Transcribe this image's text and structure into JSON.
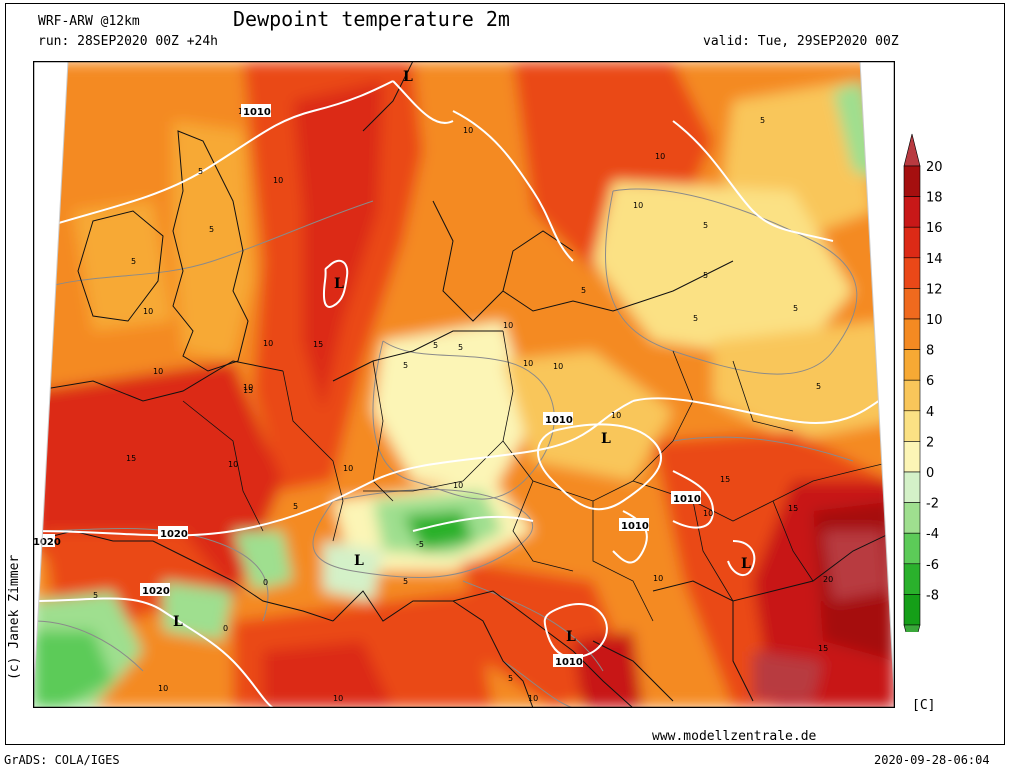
{
  "header": {
    "model": "WRF-ARW @12km",
    "run": "run: 28SEP2020 00Z +24h",
    "title": "Dewpoint temperature 2m",
    "valid": "valid: Tue, 29SEP2020 00Z"
  },
  "footer": {
    "website": "www.modellzentrale.de",
    "software": "GrADS: COLA/IGES",
    "timestamp": "2020-09-28-06:04",
    "credit": "(c) Janek Zimmer"
  },
  "legend": {
    "unit": "[C]",
    "ticks": [
      "20",
      "18",
      "16",
      "14",
      "12",
      "10",
      "8",
      "6",
      "4",
      "2",
      "0",
      "-2",
      "-4",
      "-6",
      "-8"
    ],
    "colors": [
      "#b83a40",
      "#a50f0f",
      "#c81818",
      "#dc2a16",
      "#ea4818",
      "#f06a1e",
      "#f48a22",
      "#f7a934",
      "#f9c65a",
      "#fbe184",
      "#fcf5b6",
      "#d4f1c8",
      "#9fdf8f",
      "#5ccb58",
      "#2ab12c",
      "#159f18",
      "#3aa83a"
    ]
  },
  "map": {
    "field_labels": [
      "10",
      "5",
      "15",
      "20",
      "0",
      "-5"
    ],
    "pressure_labels": [
      "1010",
      "1020",
      "1010",
      "1010",
      "1010",
      "1010",
      "1020",
      "1020",
      "1010"
    ],
    "lows": [
      "L",
      "L",
      "L",
      "L",
      "L",
      "L",
      "L"
    ]
  }
}
